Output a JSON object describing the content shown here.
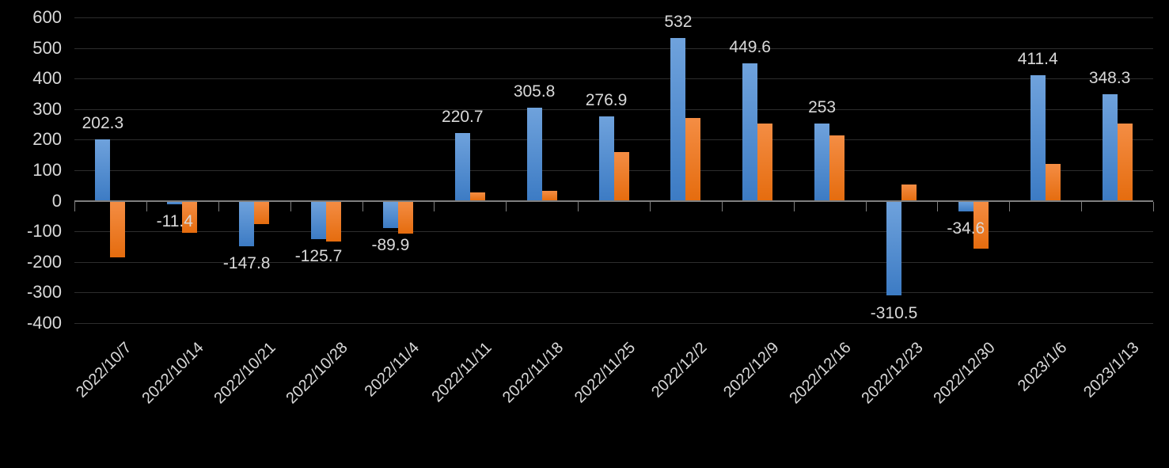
{
  "chart_data": {
    "type": "bar",
    "title": "",
    "legend": "none",
    "grid": true,
    "categories": [
      "2022/10/7",
      "2022/10/14",
      "2022/10/21",
      "2022/10/28",
      "2022/11/4",
      "2022/11/11",
      "2022/11/18",
      "2022/11/25",
      "2022/12/2",
      "2022/12/9",
      "2022/12/16",
      "2022/12/23",
      "2022/12/30",
      "2023/1/6",
      "2023/1/13"
    ],
    "series": [
      {
        "name": "series-blue",
        "values": [
          202.3,
          -11.4,
          -147.8,
          -125.7,
          -89.9,
          220.7,
          305.8,
          276.9,
          532,
          449.6,
          253,
          -310.5,
          -34.6,
          411.4,
          348.3
        ],
        "data_labels": [
          "202.3",
          "-11.4",
          "-147.8",
          "-125.7",
          "-89.9",
          "220.7",
          "305.8",
          "276.9",
          "532",
          "449.6",
          "253",
          "-310.5",
          "-34.6",
          "411.4",
          "348.3"
        ],
        "show_data_labels": true,
        "fill_top": "#6FA2DC",
        "fill_bottom": "#3C7BC4"
      },
      {
        "name": "series-orange",
        "values": [
          -184,
          -106,
          -77,
          -133,
          -108,
          28,
          34,
          160,
          270,
          254,
          214,
          54,
          -156,
          120,
          253
        ],
        "values_estimated_from_gridlines": true,
        "show_data_labels": false,
        "fill_top": "#F48D44",
        "fill_bottom": "#E56C0E"
      }
    ],
    "y_axis": {
      "ticks": [
        "600",
        "500",
        "400",
        "300",
        "200",
        "100",
        "0",
        "-100",
        "-200",
        "-300",
        "-400"
      ],
      "min": -400,
      "max": 600,
      "step": 100
    },
    "x_axis": {
      "label_rotation_deg": 45,
      "tick_marks": "category-boundaries"
    },
    "colors": {
      "background": "#000000",
      "text": "#D9D9D9",
      "gridline": "#2D2D2D",
      "axis_line": "#7F7F7F"
    }
  }
}
